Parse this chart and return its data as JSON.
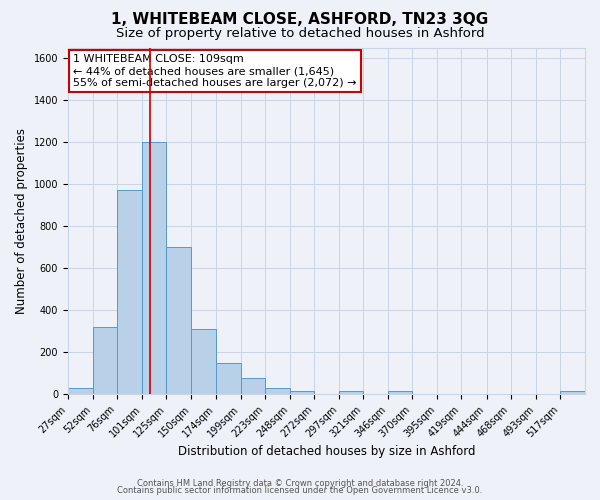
{
  "title": "1, WHITEBEAM CLOSE, ASHFORD, TN23 3QG",
  "subtitle": "Size of property relative to detached houses in Ashford",
  "xlabel": "Distribution of detached houses by size in Ashford",
  "ylabel": "Number of detached properties",
  "bar_color": "#b8d0e8",
  "bar_edge_color": "#5599cc",
  "grid_color": "#c8d4e8",
  "background_color": "#eef2f8",
  "bin_labels": [
    "27sqm",
    "52sqm",
    "76sqm",
    "101sqm",
    "125sqm",
    "150sqm",
    "174sqm",
    "199sqm",
    "223sqm",
    "248sqm",
    "272sqm",
    "297sqm",
    "321sqm",
    "346sqm",
    "370sqm",
    "395sqm",
    "419sqm",
    "444sqm",
    "468sqm",
    "493sqm",
    "517sqm"
  ],
  "bin_edges": [
    27,
    52,
    76,
    101,
    125,
    150,
    174,
    199,
    223,
    248,
    272,
    297,
    321,
    346,
    370,
    395,
    419,
    444,
    468,
    493,
    517,
    542
  ],
  "bar_heights": [
    30,
    320,
    970,
    1200,
    700,
    310,
    150,
    75,
    30,
    15,
    0,
    15,
    0,
    15,
    0,
    0,
    0,
    0,
    0,
    0,
    15
  ],
  "ylim": [
    0,
    1650
  ],
  "yticks": [
    0,
    200,
    400,
    600,
    800,
    1000,
    1200,
    1400,
    1600
  ],
  "vline_x": 109,
  "vline_color": "#cc0000",
  "annotation_line1": "1 WHITEBEAM CLOSE: 109sqm",
  "annotation_line2": "← 44% of detached houses are smaller (1,645)",
  "annotation_line3": "55% of semi-detached houses are larger (2,072) →",
  "annotation_box_color": "#ffffff",
  "annotation_box_edge": "#cc0000",
  "footer_line1": "Contains HM Land Registry data © Crown copyright and database right 2024.",
  "footer_line2": "Contains public sector information licensed under the Open Government Licence v3.0.",
  "title_fontsize": 11,
  "subtitle_fontsize": 9.5,
  "label_fontsize": 8.5,
  "tick_fontsize": 7,
  "annotation_fontsize": 8,
  "footer_fontsize": 6
}
